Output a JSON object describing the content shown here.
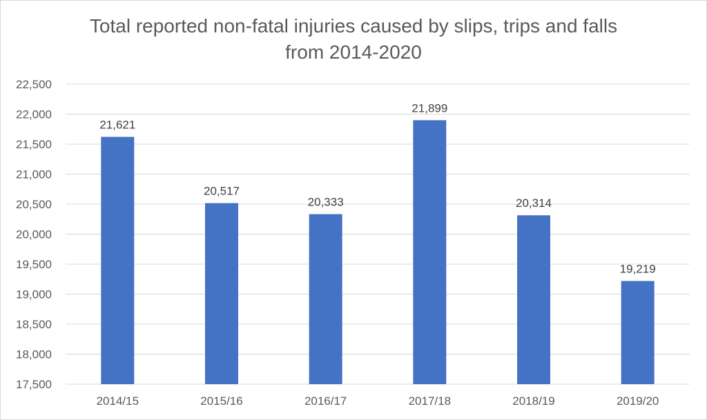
{
  "chart_data": {
    "type": "bar",
    "title_line1": "Total reported non-fatal injuries caused by slips, trips and falls",
    "title_line2": "from 2014-2020",
    "xlabel": "",
    "ylabel": "",
    "categories": [
      "2014/15",
      "2015/16",
      "2016/17",
      "2017/18",
      "2018/19",
      "2019/20"
    ],
    "values": [
      21621,
      20517,
      20333,
      21899,
      20314,
      19219
    ],
    "data_labels": [
      "21,621",
      "20,517",
      "20,333",
      "21,899",
      "20,314",
      "19,219"
    ],
    "ylim": [
      17500,
      22500
    ],
    "yticks": [
      17500,
      18000,
      18500,
      19000,
      19500,
      20000,
      20500,
      21000,
      21500,
      22000,
      22500
    ],
    "ytick_labels": [
      "17,500",
      "18,000",
      "18,500",
      "19,000",
      "19,500",
      "20,000",
      "20,500",
      "21,000",
      "21,500",
      "22,000",
      "22,500"
    ],
    "grid": true,
    "legend": "none",
    "bar_color": "#4472c4"
  }
}
